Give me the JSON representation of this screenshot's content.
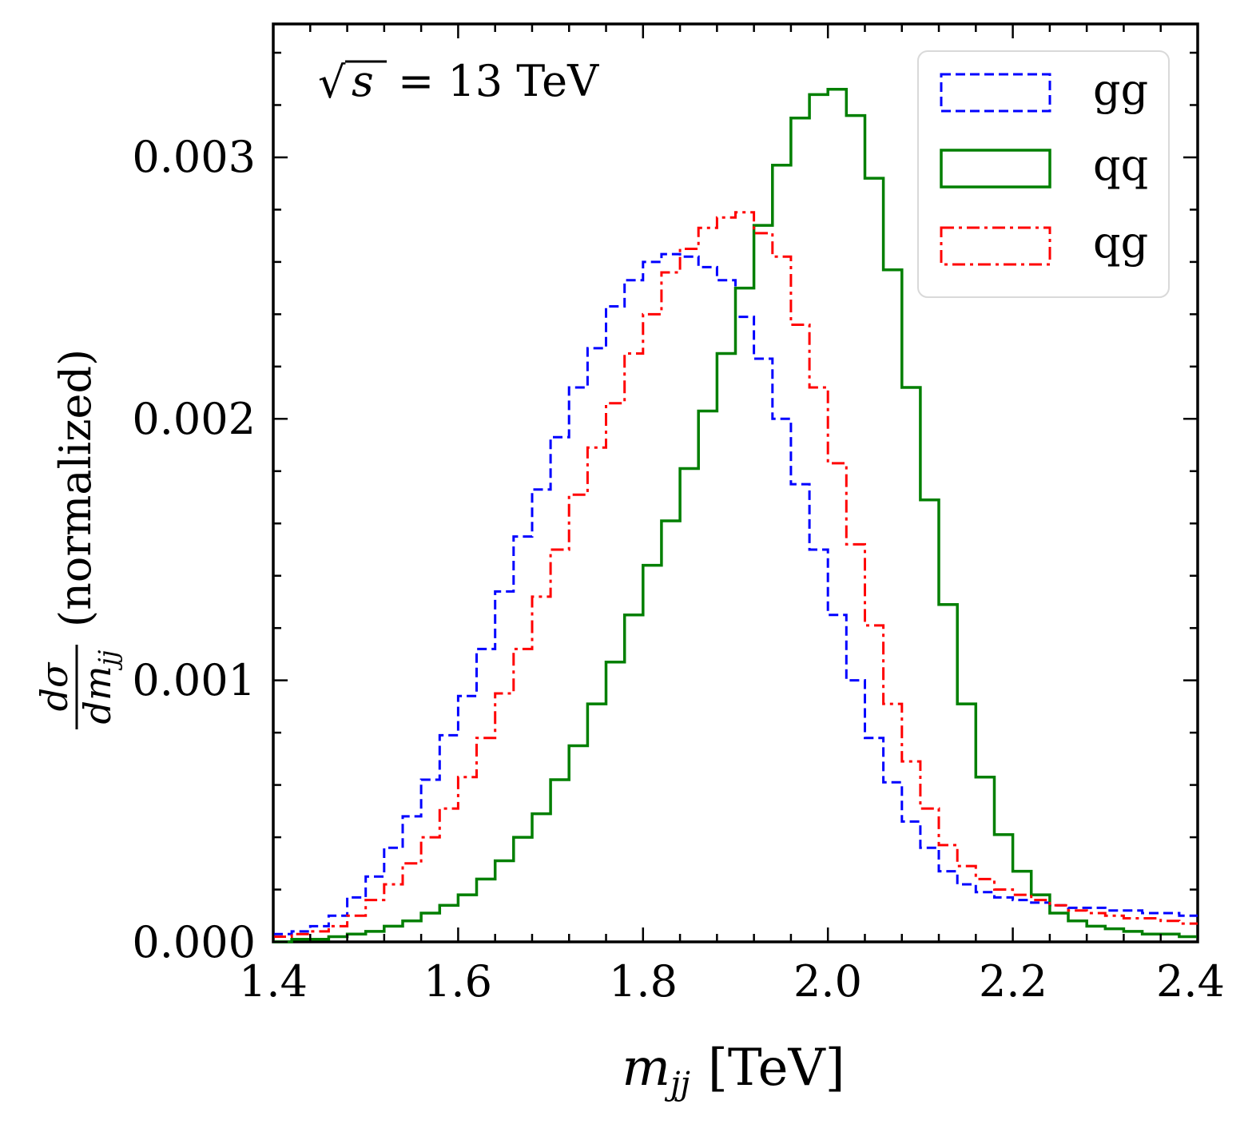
{
  "chart_data": {
    "type": "line",
    "style": "step-histogram",
    "title": "",
    "annotation": {
      "radical_symbol": "√",
      "radicand": "s",
      "text": "= 13 TeV"
    },
    "xlabel": {
      "symbol": "m",
      "subscript": "jj",
      "unit": "[TeV]"
    },
    "ylabel": {
      "numerator": "dσ",
      "denominator_symbol": "dm",
      "denominator_subscript": "jj",
      "suffix": "(normalized)"
    },
    "xlim": [
      1.4,
      2.4
    ],
    "ylim": [
      0.0,
      0.00351
    ],
    "xticks": [
      1.4,
      1.6,
      1.8,
      2.0,
      2.2,
      2.4
    ],
    "xtick_labels": [
      "1.4",
      "1.6",
      "1.8",
      "2.0",
      "2.2",
      "2.4"
    ],
    "yticks": [
      0.0,
      0.001,
      0.002,
      0.003
    ],
    "ytick_labels": [
      "0.000",
      "0.001",
      "0.002",
      "0.003"
    ],
    "legend_position": "top-right",
    "bin_edges_start": 1.4,
    "bin_width": 0.02,
    "series": [
      {
        "name": "gg",
        "color": "#0000ff",
        "linestyle": "dashed",
        "values": [
          3e-05,
          4e-05,
          6e-05,
          0.0001,
          0.00017,
          0.00025,
          0.00036,
          0.00048,
          0.00062,
          0.00079,
          0.00094,
          0.00112,
          0.00134,
          0.00155,
          0.00173,
          0.00193,
          0.00212,
          0.00227,
          0.00243,
          0.00253,
          0.0026,
          0.00263,
          0.00262,
          0.00258,
          0.00253,
          0.00239,
          0.00223,
          0.002,
          0.00175,
          0.0015,
          0.00125,
          0.001,
          0.00078,
          0.00061,
          0.00046,
          0.00036,
          0.00027,
          0.00022,
          0.00019,
          0.00017,
          0.00016,
          0.00015,
          0.00014,
          0.00013,
          0.00013,
          0.00012,
          0.00012,
          0.00011,
          0.00011,
          0.0001
        ]
      },
      {
        "name": "qq",
        "color": "#007f00",
        "linestyle": "solid",
        "values": [
          0.0,
          1e-05,
          1e-05,
          2e-05,
          3e-05,
          4e-05,
          6e-05,
          8e-05,
          0.00011,
          0.00014,
          0.00018,
          0.00024,
          0.00031,
          0.0004,
          0.00049,
          0.00062,
          0.00075,
          0.00091,
          0.00107,
          0.00125,
          0.00144,
          0.00161,
          0.00181,
          0.00203,
          0.00225,
          0.0025,
          0.00274,
          0.00297,
          0.00315,
          0.00324,
          0.00326,
          0.00316,
          0.00292,
          0.00257,
          0.00212,
          0.00169,
          0.00129,
          0.00091,
          0.00063,
          0.00041,
          0.00027,
          0.00018,
          0.00011,
          8e-05,
          6e-05,
          5e-05,
          4e-05,
          3e-05,
          3e-05,
          2e-05
        ]
      },
      {
        "name": "qg",
        "color": "#ff0000",
        "linestyle": "dashdot",
        "values": [
          2e-05,
          3e-05,
          4e-05,
          6e-05,
          0.0001,
          0.00016,
          0.00022,
          0.0003,
          0.0004,
          0.00051,
          0.00063,
          0.00078,
          0.00095,
          0.00112,
          0.00132,
          0.0015,
          0.00171,
          0.00189,
          0.00206,
          0.00225,
          0.0024,
          0.00256,
          0.00265,
          0.00273,
          0.00277,
          0.00279,
          0.00271,
          0.00262,
          0.00236,
          0.00212,
          0.00183,
          0.00152,
          0.00121,
          0.00091,
          0.00069,
          0.00051,
          0.00037,
          0.00029,
          0.00024,
          0.0002,
          0.00018,
          0.00016,
          0.00014,
          0.00012,
          0.00011,
          0.0001,
          9e-05,
          9e-05,
          8e-05,
          7e-05
        ]
      }
    ]
  }
}
